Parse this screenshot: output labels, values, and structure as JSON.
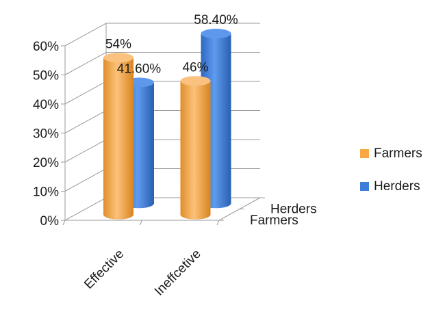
{
  "chart_data": {
    "type": "bar",
    "style": "3d-cylinder",
    "categories": [
      "Effective",
      "Ineffcetive"
    ],
    "series": [
      {
        "name": "Farmers",
        "values": [
          54,
          46
        ],
        "labels": [
          "54%",
          "46%"
        ],
        "color": "#F7A845"
      },
      {
        "name": "Herders",
        "values": [
          41.6,
          58.4
        ],
        "labels": [
          "41.60%",
          "58.40%"
        ],
        "color": "#3F7ED8"
      }
    ],
    "yticks": [
      "0%",
      "10%",
      "20%",
      "30%",
      "40%",
      "50%",
      "60%"
    ],
    "ylim": [
      0,
      60
    ],
    "depth_labels": [
      "Farmers",
      "Herders"
    ],
    "legend": {
      "position": "right",
      "entries": [
        "Farmers",
        "Herders"
      ]
    },
    "grid": true
  }
}
